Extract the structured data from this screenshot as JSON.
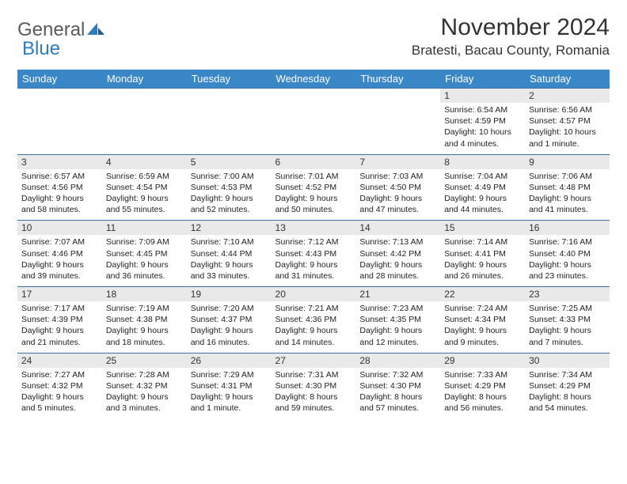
{
  "brand": {
    "part1": "General",
    "part2": "Blue"
  },
  "title": "November 2024",
  "location": "Bratesti, Bacau County, Romania",
  "colors": {
    "header_bg": "#3a87c8",
    "header_text": "#ffffff",
    "row_border": "#3a6fa0",
    "daynum_bg": "#e9e9e9",
    "brand_gray": "#5a5a5a",
    "brand_blue": "#2f7bbf"
  },
  "day_headers": [
    "Sunday",
    "Monday",
    "Tuesday",
    "Wednesday",
    "Thursday",
    "Friday",
    "Saturday"
  ],
  "weeks": [
    [
      {
        "n": "",
        "sr": "",
        "ss": "",
        "dl": ""
      },
      {
        "n": "",
        "sr": "",
        "ss": "",
        "dl": ""
      },
      {
        "n": "",
        "sr": "",
        "ss": "",
        "dl": ""
      },
      {
        "n": "",
        "sr": "",
        "ss": "",
        "dl": ""
      },
      {
        "n": "",
        "sr": "",
        "ss": "",
        "dl": ""
      },
      {
        "n": "1",
        "sr": "Sunrise: 6:54 AM",
        "ss": "Sunset: 4:59 PM",
        "dl": "Daylight: 10 hours and 4 minutes."
      },
      {
        "n": "2",
        "sr": "Sunrise: 6:56 AM",
        "ss": "Sunset: 4:57 PM",
        "dl": "Daylight: 10 hours and 1 minute."
      }
    ],
    [
      {
        "n": "3",
        "sr": "Sunrise: 6:57 AM",
        "ss": "Sunset: 4:56 PM",
        "dl": "Daylight: 9 hours and 58 minutes."
      },
      {
        "n": "4",
        "sr": "Sunrise: 6:59 AM",
        "ss": "Sunset: 4:54 PM",
        "dl": "Daylight: 9 hours and 55 minutes."
      },
      {
        "n": "5",
        "sr": "Sunrise: 7:00 AM",
        "ss": "Sunset: 4:53 PM",
        "dl": "Daylight: 9 hours and 52 minutes."
      },
      {
        "n": "6",
        "sr": "Sunrise: 7:01 AM",
        "ss": "Sunset: 4:52 PM",
        "dl": "Daylight: 9 hours and 50 minutes."
      },
      {
        "n": "7",
        "sr": "Sunrise: 7:03 AM",
        "ss": "Sunset: 4:50 PM",
        "dl": "Daylight: 9 hours and 47 minutes."
      },
      {
        "n": "8",
        "sr": "Sunrise: 7:04 AM",
        "ss": "Sunset: 4:49 PM",
        "dl": "Daylight: 9 hours and 44 minutes."
      },
      {
        "n": "9",
        "sr": "Sunrise: 7:06 AM",
        "ss": "Sunset: 4:48 PM",
        "dl": "Daylight: 9 hours and 41 minutes."
      }
    ],
    [
      {
        "n": "10",
        "sr": "Sunrise: 7:07 AM",
        "ss": "Sunset: 4:46 PM",
        "dl": "Daylight: 9 hours and 39 minutes."
      },
      {
        "n": "11",
        "sr": "Sunrise: 7:09 AM",
        "ss": "Sunset: 4:45 PM",
        "dl": "Daylight: 9 hours and 36 minutes."
      },
      {
        "n": "12",
        "sr": "Sunrise: 7:10 AM",
        "ss": "Sunset: 4:44 PM",
        "dl": "Daylight: 9 hours and 33 minutes."
      },
      {
        "n": "13",
        "sr": "Sunrise: 7:12 AM",
        "ss": "Sunset: 4:43 PM",
        "dl": "Daylight: 9 hours and 31 minutes."
      },
      {
        "n": "14",
        "sr": "Sunrise: 7:13 AM",
        "ss": "Sunset: 4:42 PM",
        "dl": "Daylight: 9 hours and 28 minutes."
      },
      {
        "n": "15",
        "sr": "Sunrise: 7:14 AM",
        "ss": "Sunset: 4:41 PM",
        "dl": "Daylight: 9 hours and 26 minutes."
      },
      {
        "n": "16",
        "sr": "Sunrise: 7:16 AM",
        "ss": "Sunset: 4:40 PM",
        "dl": "Daylight: 9 hours and 23 minutes."
      }
    ],
    [
      {
        "n": "17",
        "sr": "Sunrise: 7:17 AM",
        "ss": "Sunset: 4:39 PM",
        "dl": "Daylight: 9 hours and 21 minutes."
      },
      {
        "n": "18",
        "sr": "Sunrise: 7:19 AM",
        "ss": "Sunset: 4:38 PM",
        "dl": "Daylight: 9 hours and 18 minutes."
      },
      {
        "n": "19",
        "sr": "Sunrise: 7:20 AM",
        "ss": "Sunset: 4:37 PM",
        "dl": "Daylight: 9 hours and 16 minutes."
      },
      {
        "n": "20",
        "sr": "Sunrise: 7:21 AM",
        "ss": "Sunset: 4:36 PM",
        "dl": "Daylight: 9 hours and 14 minutes."
      },
      {
        "n": "21",
        "sr": "Sunrise: 7:23 AM",
        "ss": "Sunset: 4:35 PM",
        "dl": "Daylight: 9 hours and 12 minutes."
      },
      {
        "n": "22",
        "sr": "Sunrise: 7:24 AM",
        "ss": "Sunset: 4:34 PM",
        "dl": "Daylight: 9 hours and 9 minutes."
      },
      {
        "n": "23",
        "sr": "Sunrise: 7:25 AM",
        "ss": "Sunset: 4:33 PM",
        "dl": "Daylight: 9 hours and 7 minutes."
      }
    ],
    [
      {
        "n": "24",
        "sr": "Sunrise: 7:27 AM",
        "ss": "Sunset: 4:32 PM",
        "dl": "Daylight: 9 hours and 5 minutes."
      },
      {
        "n": "25",
        "sr": "Sunrise: 7:28 AM",
        "ss": "Sunset: 4:32 PM",
        "dl": "Daylight: 9 hours and 3 minutes."
      },
      {
        "n": "26",
        "sr": "Sunrise: 7:29 AM",
        "ss": "Sunset: 4:31 PM",
        "dl": "Daylight: 9 hours and 1 minute."
      },
      {
        "n": "27",
        "sr": "Sunrise: 7:31 AM",
        "ss": "Sunset: 4:30 PM",
        "dl": "Daylight: 8 hours and 59 minutes."
      },
      {
        "n": "28",
        "sr": "Sunrise: 7:32 AM",
        "ss": "Sunset: 4:30 PM",
        "dl": "Daylight: 8 hours and 57 minutes."
      },
      {
        "n": "29",
        "sr": "Sunrise: 7:33 AM",
        "ss": "Sunset: 4:29 PM",
        "dl": "Daylight: 8 hours and 56 minutes."
      },
      {
        "n": "30",
        "sr": "Sunrise: 7:34 AM",
        "ss": "Sunset: 4:29 PM",
        "dl": "Daylight: 8 hours and 54 minutes."
      }
    ]
  ]
}
